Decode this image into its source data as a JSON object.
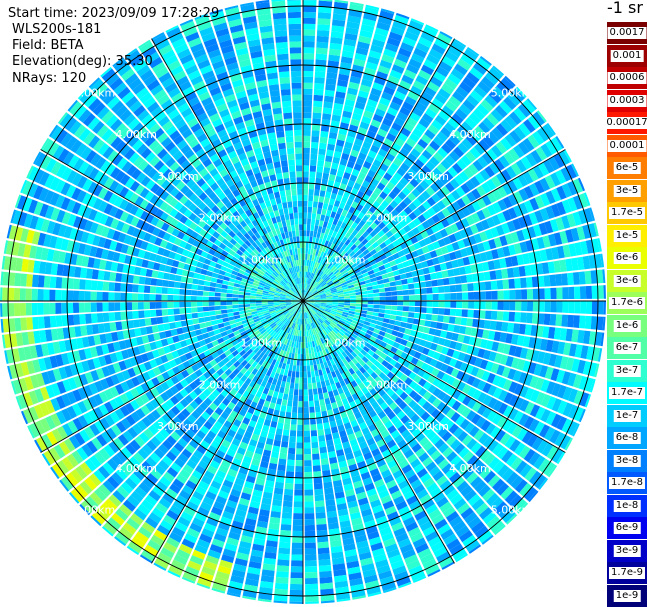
{
  "header": {
    "start_time": "Start time: 2023/09/09 17:28:29",
    "instrument": "WLS200s-181",
    "field": "Field: BETA",
    "elevation": "Elevation(deg): 35.30",
    "nrays": "NRays: 120"
  },
  "colorbar": {
    "unit": "-1 sr",
    "labels": [
      "0.0017",
      "0.001",
      "0.0006",
      "0.0003",
      "0.00017",
      "0.0001",
      "6e-5",
      "3e-5",
      "1.7e-5",
      "1e-5",
      "6e-6",
      "3e-6",
      "1.7e-6",
      "1e-6",
      "6e-7",
      "3e-7",
      "1.7e-7",
      "1e-7",
      "6e-8",
      "3e-8",
      "1.7e-8",
      "1e-8",
      "6e-9",
      "3e-9",
      "1.7e-9",
      "1e-9"
    ],
    "colors": [
      "#7a0000",
      "#9c0000",
      "#c00000",
      "#e00000",
      "#ff1800",
      "#ff5a00",
      "#ff7d00",
      "#ffa000",
      "#ffc800",
      "#ffee00",
      "#eaff00",
      "#c8ff2a",
      "#9cff5a",
      "#78ff7e",
      "#50ffa6",
      "#2effd0",
      "#00fcff",
      "#00ccff",
      "#00a6ff",
      "#0080ff",
      "#005aff",
      "#0030ff",
      "#0000f0",
      "#0000c8",
      "#00009c",
      "#000078"
    ]
  },
  "range_rings": {
    "labels": [
      "1.00km",
      "2.00km",
      "3.00km",
      "4.00km",
      "5.00km"
    ]
  },
  "chart_data": {
    "type": "heatmap",
    "projection": "polar PPI (plan position indicator)",
    "rays": 120,
    "range_rings_km": [
      1,
      2,
      3,
      4,
      5
    ],
    "max_range_km": 5.1,
    "field": "BETA",
    "unit": "-1 sr",
    "color_scale": "log",
    "color_range": [
      1e-09,
      0.0017
    ],
    "typical_value": 1e-07,
    "features": [
      {
        "name": "near-range core",
        "range_km": [
          0,
          1.0
        ],
        "value": 2e-07
      },
      {
        "name": "enhanced arc",
        "azimuth_deg": [
          195,
          285
        ],
        "range_km": [
          4.6,
          5.1
        ],
        "value": 1.5e-06
      }
    ]
  }
}
